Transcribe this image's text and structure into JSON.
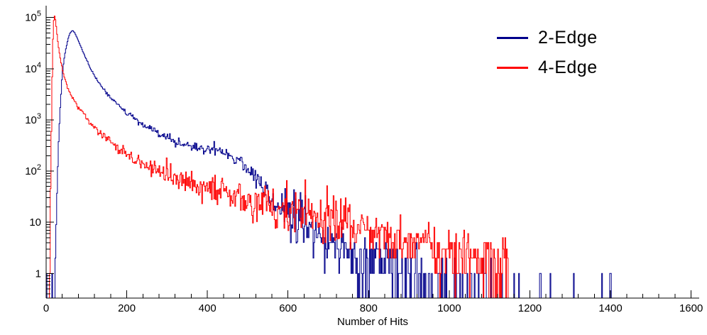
{
  "chart_data": {
    "type": "line",
    "subtype": "histogram-step",
    "title": "",
    "xlabel": "Number of Hits",
    "ylabel": "",
    "yscale": "log",
    "grid": false,
    "legend_position": "top-right",
    "x_axis": {
      "min": 0,
      "max": 1620,
      "major_ticks": [
        0,
        200,
        400,
        600,
        800,
        1000,
        1200,
        1400,
        1600
      ],
      "minor_step": 40
    },
    "y_axis": {
      "scale": "log",
      "min": 0.33,
      "max": 170000,
      "ticks": [
        {
          "v": 1,
          "label": "1"
        },
        {
          "v": 10,
          "label": "10"
        },
        {
          "v": 100,
          "base": "10",
          "exp": "2"
        },
        {
          "v": 1000,
          "base": "10",
          "exp": "3"
        },
        {
          "v": 10000,
          "base": "10",
          "exp": "4"
        },
        {
          "v": 100000,
          "base": "10",
          "exp": "5"
        }
      ]
    },
    "legend": {
      "items": [
        {
          "label": "2-Edge",
          "color": "#00008b"
        },
        {
          "label": "4-Edge",
          "color": "#ff0000"
        }
      ]
    },
    "series": [
      {
        "name": "2-Edge",
        "color": "#00008b",
        "bin_width": 2,
        "peak": {
          "x": 65,
          "y": 55000
        },
        "trend_log10": [
          [
            20,
            -1.5
          ],
          [
            23,
            -0.2
          ],
          [
            25,
            0.8
          ],
          [
            27,
            1.5
          ],
          [
            30,
            2.3
          ],
          [
            33,
            2.9
          ],
          [
            36,
            3.4
          ],
          [
            40,
            3.9
          ],
          [
            44,
            4.15
          ],
          [
            48,
            4.35
          ],
          [
            52,
            4.5
          ],
          [
            56,
            4.62
          ],
          [
            60,
            4.7
          ],
          [
            64,
            4.74
          ],
          [
            68,
            4.73
          ],
          [
            72,
            4.68
          ],
          [
            78,
            4.58
          ],
          [
            85,
            4.45
          ],
          [
            92,
            4.32
          ],
          [
            100,
            4.18
          ],
          [
            110,
            4.0
          ],
          [
            120,
            3.86
          ],
          [
            135,
            3.68
          ],
          [
            150,
            3.52
          ],
          [
            165,
            3.4
          ],
          [
            180,
            3.28
          ],
          [
            200,
            3.13
          ],
          [
            220,
            3.01
          ],
          [
            240,
            2.9
          ],
          [
            260,
            2.8
          ],
          [
            280,
            2.72
          ],
          [
            300,
            2.65
          ],
          [
            320,
            2.58
          ],
          [
            340,
            2.52
          ],
          [
            360,
            2.48
          ],
          [
            380,
            2.45
          ],
          [
            400,
            2.43
          ],
          [
            415,
            2.42
          ],
          [
            430,
            2.4
          ],
          [
            445,
            2.36
          ],
          [
            460,
            2.3
          ],
          [
            475,
            2.22
          ],
          [
            490,
            2.12
          ],
          [
            505,
            2.0
          ],
          [
            520,
            1.86
          ],
          [
            535,
            1.72
          ],
          [
            550,
            1.58
          ],
          [
            565,
            1.45
          ],
          [
            580,
            1.32
          ],
          [
            600,
            1.17
          ],
          [
            620,
            1.04
          ],
          [
            640,
            0.93
          ],
          [
            660,
            0.83
          ],
          [
            680,
            0.74
          ],
          [
            700,
            0.66
          ],
          [
            730,
            0.55
          ],
          [
            760,
            0.44
          ],
          [
            800,
            0.3
          ],
          [
            840,
            0.19
          ],
          [
            880,
            0.08
          ],
          [
            920,
            -0.03
          ],
          [
            960,
            -0.16
          ],
          [
            1000,
            -0.35
          ],
          [
            1050,
            -0.5
          ],
          [
            1100,
            -0.7
          ],
          [
            1150,
            -0.9
          ],
          [
            1200,
            -1.1
          ],
          [
            1300,
            -1.3
          ],
          [
            1400,
            -1.45
          ],
          [
            1500,
            -1.6
          ],
          [
            1620,
            -1.7
          ]
        ]
      },
      {
        "name": "4-Edge",
        "color": "#ff0000",
        "bin_width": 2,
        "peak": {
          "x": 20,
          "y": 110000
        },
        "trend_log10": [
          [
            6,
            -1.5
          ],
          [
            8,
            -0.3
          ],
          [
            10,
            0.8
          ],
          [
            12,
            2.2
          ],
          [
            14,
            3.4
          ],
          [
            16,
            4.3
          ],
          [
            18,
            4.85
          ],
          [
            20,
            5.04
          ],
          [
            22,
            5.02
          ],
          [
            24,
            4.9
          ],
          [
            26,
            4.75
          ],
          [
            28,
            4.6
          ],
          [
            30,
            4.47
          ],
          [
            33,
            4.3
          ],
          [
            36,
            4.15
          ],
          [
            40,
            3.99
          ],
          [
            45,
            3.84
          ],
          [
            50,
            3.71
          ],
          [
            55,
            3.61
          ],
          [
            60,
            3.52
          ],
          [
            70,
            3.37
          ],
          [
            80,
            3.24
          ],
          [
            90,
            3.13
          ],
          [
            100,
            3.03
          ],
          [
            115,
            2.9
          ],
          [
            130,
            2.78
          ],
          [
            145,
            2.67
          ],
          [
            160,
            2.57
          ],
          [
            180,
            2.45
          ],
          [
            200,
            2.34
          ],
          [
            220,
            2.25
          ],
          [
            240,
            2.16
          ],
          [
            260,
            2.08
          ],
          [
            280,
            2.0
          ],
          [
            300,
            1.93
          ],
          [
            325,
            1.86
          ],
          [
            350,
            1.79
          ],
          [
            375,
            1.72
          ],
          [
            400,
            1.66
          ],
          [
            430,
            1.59
          ],
          [
            460,
            1.52
          ],
          [
            490,
            1.45
          ],
          [
            520,
            1.38
          ],
          [
            550,
            1.31
          ],
          [
            580,
            1.25
          ],
          [
            610,
            1.19
          ],
          [
            640,
            1.13
          ],
          [
            670,
            1.07
          ],
          [
            700,
            1.01
          ],
          [
            740,
            0.94
          ],
          [
            780,
            0.86
          ],
          [
            820,
            0.79
          ],
          [
            860,
            0.71
          ],
          [
            900,
            0.64
          ],
          [
            940,
            0.57
          ],
          [
            980,
            0.5
          ],
          [
            1020,
            0.43
          ],
          [
            1060,
            0.36
          ],
          [
            1100,
            0.28
          ],
          [
            1130,
            0.2
          ],
          [
            1145,
            0.0
          ],
          [
            1152,
            -2.0
          ],
          [
            1160,
            -4.0
          ],
          [
            1620,
            -5.0
          ]
        ]
      }
    ],
    "render": {
      "seed": 12345,
      "noise_dex_scale": 0.9
    }
  }
}
